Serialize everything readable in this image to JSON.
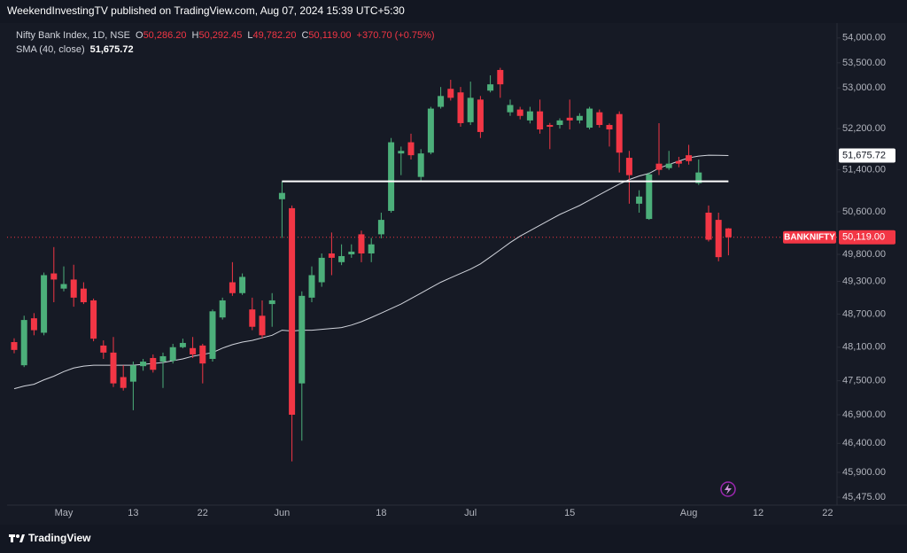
{
  "header": "WeekendInvestingTV published on TradingView.com, Aug 07, 2024 15:39 UTC+5:30",
  "brand": "TradingView",
  "chart_data": {
    "type": "candlestick",
    "log_scale": true,
    "up_color": "#4caf7a",
    "down_color": "#f23645",
    "legend": {
      "title": "Nifty Bank Index, 1D, NSE",
      "keys": [
        "O",
        "H",
        "L",
        "C"
      ],
      "value_labels": [
        "50,286.20",
        "50,292.45",
        "49,782.20",
        "50,119.00"
      ],
      "change_label": "+370.70 (+0.75%)"
    },
    "categories": [
      null,
      null,
      null,
      null,
      null,
      "May",
      null,
      null,
      null,
      null,
      null,
      null,
      "13",
      null,
      null,
      null,
      null,
      null,
      null,
      "22",
      null,
      null,
      null,
      null,
      null,
      null,
      null,
      "Jun",
      null,
      null,
      null,
      null,
      null,
      null,
      null,
      null,
      null,
      "18",
      null,
      null,
      null,
      null,
      null,
      null,
      null,
      null,
      "Jul",
      null,
      null,
      null,
      null,
      null,
      null,
      null,
      null,
      null,
      "15",
      null,
      null,
      null,
      null,
      null,
      null,
      null,
      null,
      null,
      null,
      null,
      "Aug",
      null,
      null,
      null,
      null,
      null,
      null,
      "12",
      null,
      null,
      null,
      null,
      null,
      null,
      "22"
    ],
    "open": [
      48192,
      47776,
      48623,
      48361,
      49446,
      49166,
      49333,
      49166,
      48950,
      48130,
      48003,
      47565,
      47484,
      47760,
      47906,
      47841,
      47857,
      48100,
      48084,
      48130,
      47890,
      48638,
      49283,
      49083,
      48784,
      48669,
      48883,
      50838,
      50668,
      47453,
      49000,
      49283,
      49817,
      49655,
      49800,
      50175,
      49817,
      50175,
      50617,
      51716,
      51933,
      51264,
      51732,
      52626,
      52982,
      52911,
      52324,
      52769,
      52946,
      53357,
      52519,
      52573,
      52359,
      52537,
      52270,
      52270,
      52412,
      52359,
      52218,
      52519,
      52270,
      52484,
      51632,
      50753,
      50464,
      51519,
      51434,
      51569,
      51682,
      51145,
      50583,
      50447,
      50286.2,
      null,
      null,
      null,
      null,
      null,
      null,
      null,
      null,
      null,
      null
    ],
    "high": [
      48260,
      48670,
      48717,
      49462,
      49936,
      49575,
      49607,
      49283,
      48983,
      48223,
      48284,
      47776,
      47841,
      47890,
      47970,
      48003,
      48161,
      48254,
      48284,
      48161,
      48784,
      49000,
      49655,
      49446,
      49000,
      48950,
      49083,
      51179,
      50719,
      49116,
      49575,
      49817,
      50209,
      49987,
      49987,
      50243,
      50107,
      50583,
      52016,
      51849,
      52100,
      51800,
      52626,
      53018,
      53161,
      53018,
      53125,
      52840,
      53250,
      53400,
      52769,
      52626,
      52626,
      52769,
      52310,
      52400,
      52769,
      52500,
      52626,
      52573,
      52300,
      52537,
      51766,
      51009,
      51349,
      52306,
      51766,
      51650,
      51883,
      51599,
      50719,
      50583,
      50292.45,
      null,
      null,
      null,
      null,
      null,
      null,
      null,
      null,
      null,
      null
    ],
    "low": [
      47990,
      47744,
      48315,
      48315,
      48916,
      49116,
      48834,
      48883,
      48207,
      47890,
      47389,
      47326,
      46979,
      47679,
      47646,
      47373,
      47808,
      48080,
      47906,
      47453,
      47841,
      48600,
      49033,
      49050,
      48407,
      48254,
      48469,
      50107,
      46088,
      46446,
      48916,
      49200,
      49414,
      49600,
      49736,
      49655,
      49655,
      50100,
      50583,
      51298,
      51599,
      51179,
      51700,
      52591,
      52750,
      52235,
      52270,
      52016,
      52911,
      52804,
      52448,
      52380,
      52300,
      52100,
      51800,
      52200,
      52183,
      52300,
      52183,
      52218,
      51849,
      51349,
      50753,
      50583,
      50447,
      51300,
      51400,
      51450,
      51500,
      51110,
      50040,
      49671,
      49782.2,
      null,
      null,
      null,
      null,
      null,
      null,
      null,
      null,
      null,
      null
    ],
    "close": [
      48051,
      48592,
      48407,
      49414,
      49333,
      49250,
      49000,
      48916,
      48254,
      48003,
      47453,
      47373,
      47776,
      47841,
      47695,
      47938,
      48100,
      48177,
      47970,
      47808,
      48750,
      48950,
      49083,
      49382,
      48469,
      48315,
      48950,
      50958,
      46900,
      49033,
      49414,
      49736,
      49736,
      49768,
      49851,
      49817,
      49987,
      50447,
      51933,
      51766,
      51682,
      51716,
      52591,
      52840,
      52804,
      52306,
      52804,
      52133,
      53071,
      53071,
      52662,
      52448,
      52537,
      52183,
      52235,
      52359,
      52359,
      52448,
      52591,
      52270,
      52183,
      51732,
      51298,
      50889,
      51315,
      51400,
      51519,
      51519,
      51569,
      51349,
      50073,
      49748.3,
      50119,
      null,
      null,
      null,
      null,
      null,
      null,
      null,
      null,
      null,
      null
    ],
    "sma": {
      "name": "SMA (40, close)",
      "color": "#d1d4dc",
      "value_label": "51,675.72",
      "values": [
        47358,
        47405,
        47437,
        47516,
        47581,
        47663,
        47727,
        47760,
        47776,
        47776,
        47776,
        47776,
        47776,
        47792,
        47808,
        47825,
        47857,
        47890,
        47938,
        47970,
        48003,
        48084,
        48146,
        48192,
        48223,
        48269,
        48315,
        48407,
        48392,
        48407,
        48407,
        48423,
        48438,
        48454,
        48500,
        48561,
        48638,
        48717,
        48800,
        48883,
        48983,
        49083,
        49183,
        49283,
        49366,
        49446,
        49526,
        49623,
        49752,
        49885,
        50021,
        50141,
        50243,
        50345,
        50447,
        50549,
        50634,
        50719,
        50821,
        50924,
        51026,
        51128,
        51213,
        51281,
        51332,
        51433,
        51502,
        51569,
        51632,
        51666,
        51682,
        51680,
        51675.72,
        null,
        null,
        null,
        null,
        null,
        null,
        null,
        null,
        null,
        null
      ]
    },
    "hline": {
      "value": 51180,
      "from": "Jun",
      "color": "#ffffff"
    },
    "last_price": {
      "symbol": "BANKNIFTY",
      "label": "50,119.00"
    },
    "ylim": [
      45340,
      54230
    ],
    "yticks": [
      {
        "value": 54000,
        "label": "54,000.00"
      },
      {
        "value": 53500,
        "label": "53,500.00"
      },
      {
        "value": 53000,
        "label": "53,000.00"
      },
      {
        "value": 52200,
        "label": "52,200.00"
      },
      {
        "value": 51400,
        "label": "51,400.00"
      },
      {
        "value": 50600,
        "label": "50,600.00"
      },
      {
        "value": 49800,
        "label": "49,800.00"
      },
      {
        "value": 49300,
        "label": "49,300.00"
      },
      {
        "value": 48700,
        "label": "48,700.00"
      },
      {
        "value": 48100,
        "label": "48,100.00"
      },
      {
        "value": 47500,
        "label": "47,500.00"
      },
      {
        "value": 46900,
        "label": "46,900.00"
      },
      {
        "value": 46400,
        "label": "46,400.00"
      },
      {
        "value": 45900,
        "label": "45,900.00"
      },
      {
        "value": 45475,
        "label": "45,475.00"
      }
    ],
    "grid": false
  }
}
